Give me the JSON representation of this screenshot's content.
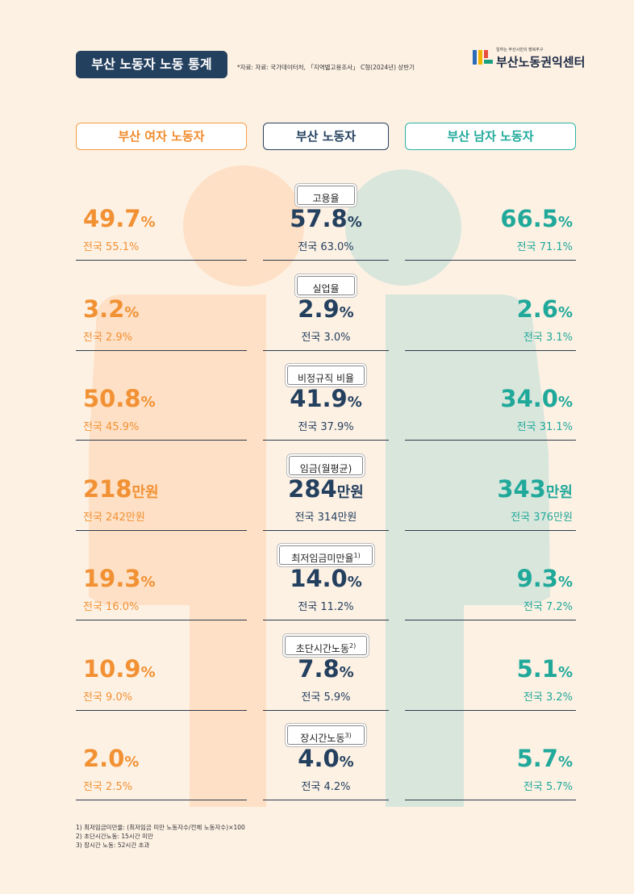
{
  "header": {
    "title": "부산 노동자 노동 통계",
    "source": "*자료: 자료: 국가데이터처, 「지역별고용조사」 C형(2024년) 상반기",
    "logo_tagline": "일하는 부산시민의 행복추구",
    "logo_name": "부산노동권익센터"
  },
  "columns": {
    "female": "부산 여자 노동자",
    "busan": "부산 노동자",
    "male": "부산 남자 노동자"
  },
  "colors": {
    "female": "#f29133",
    "busan": "#24405f",
    "male": "#20a99a",
    "female_figure": "#fde0c5",
    "male_figure": "#d9e6dc"
  },
  "rows": [
    {
      "label": "고용율",
      "sup": "",
      "female": {
        "num": "49.7",
        "unit": "%",
        "nat": "전국 55.1%"
      },
      "busan": {
        "num": "57.8",
        "unit": "%",
        "nat": "전국 63.0%"
      },
      "male": {
        "num": "66.5",
        "unit": "%",
        "nat": "전국 71.1%"
      }
    },
    {
      "label": "실업율",
      "sup": "",
      "female": {
        "num": "3.2",
        "unit": "%",
        "nat": "전국 2.9%"
      },
      "busan": {
        "num": "2.9",
        "unit": "%",
        "nat": "전국 3.0%"
      },
      "male": {
        "num": "2.6",
        "unit": "%",
        "nat": "전국 3.1%"
      }
    },
    {
      "label": "비정규직 비율",
      "sup": "",
      "female": {
        "num": "50.8",
        "unit": "%",
        "nat": "전국 45.9%"
      },
      "busan": {
        "num": "41.9",
        "unit": "%",
        "nat": "전국 37.9%"
      },
      "male": {
        "num": "34.0",
        "unit": "%",
        "nat": "전국 31.1%"
      }
    },
    {
      "label": "임금(월평균)",
      "sup": "",
      "female": {
        "num": "218",
        "unit": "만원",
        "nat": "전국 242만원"
      },
      "busan": {
        "num": "284",
        "unit": "만원",
        "nat": "전국 314만원"
      },
      "male": {
        "num": "343",
        "unit": "만원",
        "nat": "전국 376만원"
      }
    },
    {
      "label": "최저임금미만율",
      "sup": "1)",
      "female": {
        "num": "19.3",
        "unit": "%",
        "nat": "전국 16.0%"
      },
      "busan": {
        "num": "14.0",
        "unit": "%",
        "nat": "전국 11.2%"
      },
      "male": {
        "num": "9.3",
        "unit": "%",
        "nat": "전국 7.2%"
      }
    },
    {
      "label": "초단시간노동",
      "sup": "2)",
      "female": {
        "num": "10.9",
        "unit": "%",
        "nat": "전국 9.0%"
      },
      "busan": {
        "num": "7.8",
        "unit": "%",
        "nat": "전국 5.9%"
      },
      "male": {
        "num": "5.1",
        "unit": "%",
        "nat": "전국 3.2%"
      }
    },
    {
      "label": "장시간노동",
      "sup": "3)",
      "female": {
        "num": "2.0",
        "unit": "%",
        "nat": "전국 2.5%"
      },
      "busan": {
        "num": "4.0",
        "unit": "%",
        "nat": "전국 4.2%"
      },
      "male": {
        "num": "5.7",
        "unit": "%",
        "nat": "전국 5.7%"
      }
    }
  ],
  "footnotes": [
    "1) 최저임금미만율: (최저임금 미만 노동자수/전체 노동자수)×100",
    "2) 초단시간노동: 15시간 미만",
    "3) 장시간 노동: 52시간 초과"
  ]
}
